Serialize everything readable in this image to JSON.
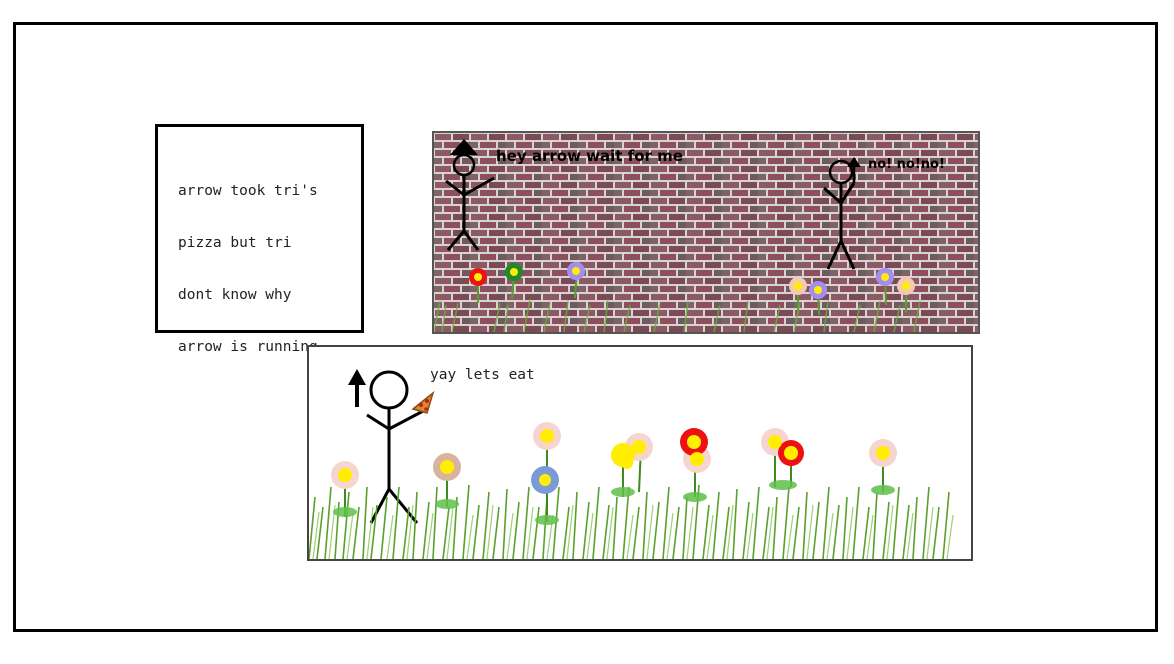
{
  "caption": {
    "lines": [
      "arrow took tri's",
      "pizza but tri",
      "dont know why",
      "arrow is running"
    ]
  },
  "panel_top": {
    "tri_speech": "hey arrow wait for me",
    "arrow_speech": "no! no!no!"
  },
  "panel_bottom": {
    "arrow_speech": "yay lets eat"
  },
  "colors": {
    "brick": "#8b5a63",
    "mortar": "#d9d2d4",
    "grass": "#5aa02c",
    "flower_center": "#ffee00"
  }
}
